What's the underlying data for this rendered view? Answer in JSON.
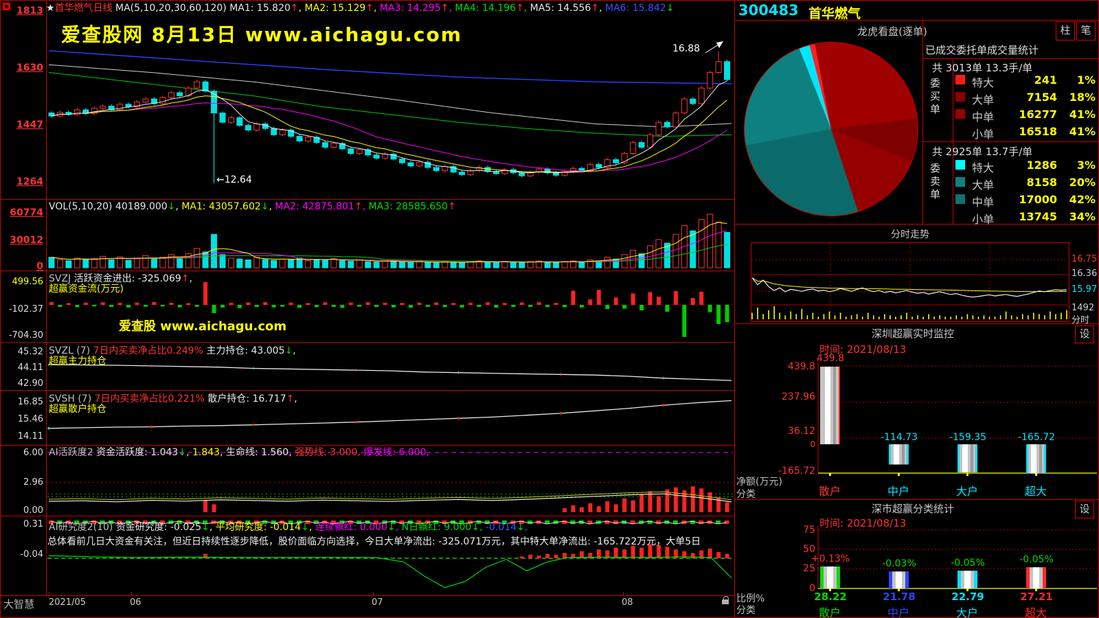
{
  "colors": {
    "accent_red": "#e00000",
    "up_red": "#ff3434",
    "down_cyan": "#00e0e0",
    "ma_yellow": "#ffff00",
    "ma_magenta": "#ff00ff",
    "ma_green": "#00cc00",
    "ma_blue": "#2840ff",
    "watermark_yellow": "#ffff00",
    "value_yellow": "#ffff00"
  },
  "left": {
    "kline_header": [
      {
        "t": "★",
        "c": "w"
      },
      {
        "t": "首华燃气",
        "c": "r"
      },
      {
        "t": "日线",
        "c": "r",
        "tail": " "
      },
      {
        "t": "MA(5,10,20,30,60,120) ",
        "c": "w"
      },
      {
        "t": "MA1: 15.820",
        "c": "w",
        "a": "up",
        "tail": ", "
      },
      {
        "t": "MA2: 15.129",
        "c": "y",
        "a": "up",
        "tail": ", "
      },
      {
        "t": "MA3: 14.295",
        "c": "m",
        "a": "up",
        "tail": ", "
      },
      {
        "t": "MA4: 14.196",
        "c": "g",
        "a": "up",
        "tail": ", "
      },
      {
        "t": "MA5: 14.556",
        "c": "w",
        "a": "up",
        "tail": ", "
      },
      {
        "t": "MA6: 15.842",
        "c": "b",
        "a": "down"
      }
    ],
    "ann_high": "16.88",
    "ann_low": "←12.64",
    "watermark_main": "爱查股网  8月13日  www.aichagu.com",
    "watermark_sub": "爱查股 www.aichagu.com",
    "vol_header": [
      {
        "t": "VOL(5,10,20) ",
        "c": "w"
      },
      {
        "t": "40189.000",
        "c": "w",
        "a": "down",
        "tail": ", "
      },
      {
        "t": "MA1: 43057.602",
        "c": "y",
        "a": "down",
        "tail": ", "
      },
      {
        "t": "MA2: 42875.801",
        "c": "m",
        "a": "up",
        "tail": ", "
      },
      {
        "t": "MA3: 28585.650",
        "c": "g",
        "a": "up"
      }
    ],
    "svzj_header": [
      {
        "t": "SVZJ  ",
        "c": "gr"
      },
      {
        "t": "活跃资金进出: -325.069",
        "c": "w",
        "a": "up",
        "tail": ", "
      }
    ],
    "svzj_sub": "超赢资金流(万元)",
    "svzl_header": [
      {
        "t": "SVZL (7) ",
        "c": "gr"
      },
      {
        "t": "7日内买卖净占比0.249% ",
        "c": "r"
      },
      {
        "t": "主力持仓: 43.005",
        "c": "w",
        "a": "down",
        "tail": ", "
      }
    ],
    "svzl_sub": "超赢主力持仓",
    "svsh_header": [
      {
        "t": "SVSH (7) ",
        "c": "gr"
      },
      {
        "t": "7日内买卖净占比0.221% ",
        "c": "r"
      },
      {
        "t": "散户持仓: 16.717",
        "c": "w",
        "a": "up",
        "tail": ", "
      }
    ],
    "svsh_sub": "超赢散户持仓",
    "ai1_header": [
      {
        "t": "AI活跃度2 ",
        "c": "gr"
      },
      {
        "t": "资金活跃度: 1.043",
        "c": "w",
        "a": "down",
        "tail": ", "
      },
      {
        "t": "1.843",
        "c": "y",
        "tail": ", "
      },
      {
        "t": "生命线: 1.560",
        "c": "w",
        "tail": ", "
      },
      {
        "t": "强势线: 3.000",
        "c": "r",
        "tail": ", "
      },
      {
        "t": "爆发线: 6.000",
        "c": "m",
        "tail": ", "
      }
    ],
    "ai2_header": [
      {
        "t": "AI研究度2(10) ",
        "c": "gr"
      },
      {
        "t": "资金研究度: -0.025",
        "c": "w",
        "a": "down",
        "tail": ", "
      },
      {
        "t": "平均研究度: -0.014",
        "c": "y",
        "a": "down",
        "tail": ", "
      },
      {
        "t": "连续飘红: 0.000",
        "c": "m",
        "a": "down",
        "tail": ", "
      },
      {
        "t": "N日飘红: 9.000",
        "c": "g",
        "a": "down",
        "tail": ", "
      },
      {
        "t": "-0.014",
        "c": "b",
        "a": "down",
        "tail": ","
      }
    ],
    "analysis_text": "总体看前几日大资金有关注，但近日持续性逐步降低，股价面临方向选择，今日大单净流出: -325.071万元，其中特大单净流出: -165.722万元，大单5日",
    "axes": {
      "price": [
        "1813",
        "1630",
        "1447",
        "1264"
      ],
      "vol": [
        "60774",
        "30012",
        "0"
      ],
      "svzj": [
        "499.56",
        "-102.37",
        "-704.30"
      ],
      "svzl": [
        "45.32",
        "44.11",
        "42.90"
      ],
      "svsh": [
        "16.85",
        "15.46",
        "14.11"
      ],
      "ai1": [
        "6.00",
        "2.96",
        "0.00"
      ],
      "ai2": [
        "0.31",
        "-0.04"
      ]
    },
    "bottom": {
      "brand": "大智慧",
      "dates": [
        "2021/05",
        "06",
        "07",
        "08"
      ]
    }
  },
  "right": {
    "code": "300483",
    "name": "首华燃气",
    "pie_title": "龙虎看盘(逐单)",
    "btn_bar": "柱",
    "btn_tick": "笔",
    "stats": {
      "title": "已成交委托单成交量统计",
      "buy_summary": "共 3013单 13.3手/单",
      "sell_summary": "共 2925单 13.7手/单",
      "buy_label": "委买单",
      "sell_label": "委卖单",
      "buy_rows": [
        {
          "name": "特大",
          "value": "241",
          "pct": "1%",
          "swatch": "#ff1a1a"
        },
        {
          "name": "大单",
          "value": "7154",
          "pct": "18%",
          "swatch": "#8b0000"
        },
        {
          "name": "中单",
          "value": "16277",
          "pct": "41%",
          "swatch": "#9b0000"
        },
        {
          "name": "小单",
          "value": "16518",
          "pct": "41%",
          "swatch": ""
        }
      ],
      "sell_rows": [
        {
          "name": "特大",
          "value": "1286",
          "pct": "3%",
          "swatch": "#00ffff"
        },
        {
          "name": "大单",
          "value": "8158",
          "pct": "20%",
          "swatch": "#0d8484"
        },
        {
          "name": "中单",
          "value": "17000",
          "pct": "42%",
          "swatch": "#0f7272"
        },
        {
          "name": "小单",
          "value": "13745",
          "pct": "34%",
          "swatch": ""
        }
      ]
    },
    "intraday": {
      "title": "分时走势",
      "price_high": "16.75",
      "price_mid": "16.36",
      "price_cur": "15.97",
      "vol_label": "1492",
      "axis_label": "分时"
    },
    "monitor_sz": {
      "title": "深圳超赢实时监控",
      "settings": "设",
      "time": "时间: 2021/08/13",
      "yticks": [
        "439.8",
        "237.96",
        "36.12"
      ],
      "ymin_label": "-165.72",
      "zero_label": "0",
      "unit_caption": "净额(万元)",
      "class_caption": "分类",
      "cats": [
        {
          "name": "散户",
          "value": "439.8",
          "bar": 439.8
        },
        {
          "name": "中户",
          "value": "-114.73",
          "bar": -114.73
        },
        {
          "name": "大户",
          "value": "-159.35",
          "bar": -159.35
        },
        {
          "name": "超大",
          "value": "-165.72",
          "bar": -165.72
        }
      ]
    },
    "monitor_class": {
      "title": "深市超赢分类统计",
      "settings": "设",
      "time": "时间: 2021/08/13",
      "yticks": [
        "75",
        "50",
        "25",
        "0"
      ],
      "ratio_caption": "比例%",
      "class_caption": "分类",
      "cats": [
        {
          "name": "散户",
          "pct": "+0.13%",
          "value": "28.22",
          "bar": 28.22,
          "color": "#00dd00",
          "pct_color": "#ff3434"
        },
        {
          "name": "中户",
          "pct": "-0.03%",
          "value": "21.78",
          "bar": 21.78,
          "color": "#2b46ff",
          "pct_color": "#00dd00"
        },
        {
          "name": "大户",
          "pct": "-0.05%",
          "value": "22.79",
          "bar": 22.79,
          "color": "#00e0ff",
          "pct_color": "#00dd00"
        },
        {
          "name": "超大",
          "pct": "-0.05%",
          "value": "27.21",
          "bar": 27.21,
          "color": "#ff2a2a",
          "pct_color": "#00dd00"
        }
      ]
    }
  },
  "chart_data": {
    "kline": {
      "type": "candlestick",
      "open0": 14.9,
      "ylim": [
        12.64,
        18.13
      ],
      "closes": [
        14.8,
        14.92,
        14.85,
        15.0,
        14.88,
        15.05,
        15.12,
        15.0,
        15.18,
        15.1,
        15.25,
        15.35,
        15.2,
        15.4,
        15.55,
        15.45,
        15.7,
        15.9,
        15.6,
        14.9,
        14.6,
        14.75,
        14.5,
        14.35,
        14.55,
        14.4,
        14.2,
        14.35,
        14.15,
        14.0,
        14.12,
        13.95,
        13.8,
        13.92,
        13.75,
        13.6,
        13.72,
        13.55,
        13.45,
        13.58,
        13.42,
        13.3,
        13.2,
        13.32,
        13.15,
        13.05,
        13.18,
        13.0,
        12.92,
        13.05,
        13.15,
        13.02,
        12.95,
        13.08,
        12.98,
        12.88,
        13.0,
        13.1,
        12.98,
        12.9,
        13.02,
        13.12,
        13.05,
        13.25,
        13.15,
        13.4,
        13.3,
        13.6,
        13.95,
        13.8,
        14.2,
        14.6,
        14.45,
        14.9,
        15.35,
        15.2,
        15.7,
        16.2,
        16.55,
        15.97
      ],
      "wick_low": {
        "index": 19,
        "value": 12.64
      },
      "wick_high": {
        "index": 78,
        "value": 16.88
      },
      "ma30": [
        [
          0,
          16.2
        ],
        [
          0.1,
          15.95
        ],
        [
          0.2,
          15.7
        ],
        [
          0.3,
          15.45
        ],
        [
          0.4,
          15.1
        ],
        [
          0.5,
          14.85
        ],
        [
          0.6,
          14.6
        ],
        [
          0.7,
          14.4
        ],
        [
          0.8,
          14.25
        ],
        [
          0.9,
          14.15
        ],
        [
          1,
          14.2
        ]
      ],
      "ma60": [
        [
          0,
          16.45
        ],
        [
          0.15,
          16.2
        ],
        [
          0.3,
          15.9
        ],
        [
          0.5,
          15.35
        ],
        [
          0.65,
          14.9
        ],
        [
          0.8,
          14.55
        ],
        [
          0.9,
          14.45
        ],
        [
          1,
          14.56
        ]
      ],
      "ma120": [
        [
          0,
          16.9
        ],
        [
          0.2,
          16.6
        ],
        [
          0.4,
          16.3
        ],
        [
          0.6,
          16.05
        ],
        [
          0.8,
          15.9
        ],
        [
          1,
          15.84
        ]
      ]
    },
    "volume": {
      "type": "bar",
      "ymax": 60774,
      "values": [
        12000,
        9000,
        8000,
        11000,
        9500,
        10500,
        13000,
        9000,
        12500,
        8500,
        11000,
        14000,
        10000,
        12000,
        15000,
        11000,
        16000,
        22000,
        18000,
        38000,
        15000,
        11000,
        10000,
        9000,
        12000,
        9500,
        8500,
        10000,
        9000,
        11000,
        8000,
        9500,
        8500,
        10500,
        8000,
        7500,
        9000,
        7000,
        6500,
        8000,
        7000,
        6500,
        6000,
        7500,
        6000,
        5500,
        7000,
        5800,
        6200,
        7500,
        8000,
        6500,
        6000,
        7200,
        6300,
        5800,
        7000,
        7800,
        6400,
        6000,
        7200,
        7800,
        6900,
        9000,
        8000,
        12000,
        10000,
        15000,
        20000,
        16000,
        25000,
        32000,
        28000,
        38000,
        48000,
        42000,
        55000,
        60774,
        52000,
        40189
      ]
    },
    "svzj": {
      "type": "bar",
      "ylim": [
        -704.3,
        499.56
      ],
      "values": [
        60,
        -45,
        38,
        -52,
        47,
        -33,
        55,
        -48,
        42,
        -58,
        50,
        -40,
        62,
        -35,
        45,
        -55,
        38,
        -42,
        499.56,
        -180,
        -60,
        45,
        -70,
        52,
        -48,
        60,
        -55,
        -40,
        48,
        -62,
        40,
        -50,
        55,
        -45,
        -65,
        50,
        -42,
        58,
        -48,
        45,
        -55,
        42,
        -60,
        48,
        -45,
        52,
        -50,
        40,
        -58,
        46,
        -44,
        55,
        -62,
        40,
        -48,
        52,
        -46,
        58,
        -50,
        44,
        -52,
        310,
        -58,
        120,
        330,
        -90,
        160,
        -80,
        250,
        -120,
        280,
        180,
        -150,
        300,
        -704.3,
        150,
        290,
        -160,
        -420,
        -380
      ]
    },
    "svzl": {
      "type": "line",
      "ylim": [
        42.9,
        45.32
      ],
      "values": [
        44.3,
        44.28,
        44.25,
        44.2,
        44.15,
        44.1,
        44.0,
        43.95,
        43.9,
        43.85,
        43.8,
        43.7,
        43.65,
        43.6,
        43.55,
        43.5,
        43.45,
        43.35,
        43.2,
        43.1,
        43.005
      ]
    },
    "svsh": {
      "type": "line",
      "ylim": [
        14.11,
        16.85
      ],
      "values": [
        14.5,
        14.55,
        14.6,
        14.62,
        14.68,
        14.72,
        14.78,
        14.85,
        14.92,
        15.0,
        15.1,
        15.2,
        15.3,
        15.4,
        15.55,
        15.7,
        15.9,
        16.1,
        16.35,
        16.55,
        16.717
      ]
    },
    "ai_activity": {
      "type": "line+bar",
      "ylim": [
        0,
        6
      ],
      "levels": {
        "life": 1.56,
        "avg": 1.843,
        "strong": 3.0,
        "burst": 6.0
      },
      "line": [
        1.1,
        1.15,
        1.05,
        1.2,
        1.12,
        1.25,
        1.18,
        1.1,
        1.22,
        1.15,
        1.08,
        1.2,
        1.28,
        1.18,
        1.3,
        1.45,
        1.6,
        1.75,
        1.85,
        1.5,
        1.043
      ],
      "bars": [
        0,
        0,
        0,
        0,
        0,
        0,
        0,
        0,
        0,
        0,
        0,
        0,
        0,
        0,
        0,
        0,
        0,
        0,
        1.2,
        0.8,
        0,
        0,
        0,
        0,
        0,
        0,
        0,
        0,
        0,
        0,
        0,
        0,
        0,
        0,
        0,
        0,
        0,
        0,
        0,
        0,
        0,
        0,
        0,
        0,
        0,
        0,
        0,
        0,
        0,
        0,
        0,
        0,
        0,
        0,
        0,
        0,
        0,
        0,
        0,
        0,
        0.4,
        0.7,
        0.5,
        0.9,
        0.6,
        1.1,
        0.8,
        1.4,
        1.2,
        1.8,
        2.1,
        1.6,
        2.3,
        2.5,
        2.2,
        2.6,
        2.4,
        2.0,
        1.5,
        1.0
      ]
    },
    "ai_research": {
      "type": "line+bar",
      "ylim": [
        -0.49,
        0.35
      ],
      "baseline": -0.078,
      "bars": [
        0,
        0,
        0,
        0,
        0,
        0,
        0,
        0,
        0,
        0,
        0,
        0,
        0,
        0,
        0,
        0,
        0,
        0,
        0.05,
        0,
        0,
        0,
        0,
        0,
        0,
        0,
        0,
        0,
        0,
        0,
        0,
        0,
        0,
        0,
        0,
        0,
        0,
        0,
        0,
        0,
        0,
        0,
        0,
        0,
        0,
        0,
        0,
        0,
        0,
        0,
        0,
        0,
        0,
        0,
        0,
        0.02,
        0.04,
        0.03,
        0.05,
        0.04,
        0.06,
        0.05,
        0.08,
        0.06,
        0.1,
        0.09,
        0.12,
        0.1,
        0.14,
        0.12,
        0.16,
        0.15,
        0.13,
        0.1,
        0.08,
        0.06,
        0.09,
        0.11,
        0.07,
        0.05
      ],
      "curve": [
        [
          0,
          -0.05
        ],
        [
          0.06,
          -0.06
        ],
        [
          0.12,
          -0.07
        ],
        [
          0.2,
          -0.065
        ],
        [
          0.3,
          -0.07
        ],
        [
          0.4,
          -0.068
        ],
        [
          0.48,
          -0.07
        ],
        [
          0.52,
          -0.12
        ],
        [
          0.55,
          -0.28
        ],
        [
          0.58,
          -0.41
        ],
        [
          0.61,
          -0.34
        ],
        [
          0.64,
          -0.18
        ],
        [
          0.67,
          -0.09
        ],
        [
          0.7,
          -0.22
        ],
        [
          0.73,
          -0.12
        ],
        [
          0.76,
          -0.07
        ],
        [
          0.82,
          -0.065
        ],
        [
          0.88,
          -0.07
        ],
        [
          0.93,
          -0.06
        ],
        [
          0.97,
          -0.07
        ],
        [
          1,
          -0.3
        ]
      ]
    },
    "intraday": {
      "prices": [
        16.28,
        16.1,
        16.22,
        16.05,
        15.95,
        16.02,
        15.92,
        15.98,
        15.96,
        15.93,
        15.97,
        15.99,
        15.94,
        15.96,
        15.92,
        15.95,
        16.0,
        15.97,
        15.93,
        15.98,
        16.02,
        15.96,
        15.92,
        15.95,
        15.9,
        15.93,
        15.89,
        15.92,
        15.95,
        15.91,
        15.88,
        15.9,
        15.86,
        15.89,
        15.92,
        15.88,
        15.85,
        15.87,
        15.83,
        15.8,
        15.78,
        15.8,
        15.82,
        15.84,
        15.81,
        15.83,
        15.85,
        15.82,
        15.8,
        15.83,
        15.86,
        15.9,
        15.94,
        15.92,
        15.95,
        15.97,
        15.96,
        15.97
      ],
      "vols": [
        0.5,
        0.9,
        0.4,
        0.7,
        1.0,
        0.5,
        0.3,
        0.6,
        0.4,
        0.8,
        0.3,
        0.5,
        0.2,
        0.4,
        0.6,
        0.3,
        0.5,
        0.2,
        0.3,
        0.4,
        0.2,
        0.5,
        0.3,
        0.2,
        0.4,
        0.3,
        0.2,
        0.3,
        0.5,
        0.2,
        0.3,
        0.2,
        0.4,
        0.2,
        0.3,
        0.2,
        0.2,
        0.3,
        0.2,
        0.4,
        0.3,
        0.2,
        0.3,
        0.2,
        0.2,
        0.3,
        0.6,
        0.3,
        0.2,
        0.4,
        0.3,
        0.5,
        0.4,
        0.3,
        0.6,
        0.4,
        0.5,
        0.7
      ]
    },
    "pie_segments": [
      [
        "#a00000",
        0,
        23
      ],
      [
        "#7e0000",
        23,
        31
      ],
      [
        "#960000",
        31,
        45
      ],
      [
        "#0b6b6b",
        45,
        72
      ],
      [
        "#0e8080",
        72,
        94
      ],
      [
        "#00e5ff",
        94,
        96
      ],
      [
        "#ff2020",
        96,
        97
      ],
      [
        "#a00000",
        97,
        100
      ]
    ],
    "monitor_sz_values": [
      439.8,
      -114.73,
      -159.35,
      -165.72
    ],
    "monitor_class_values": [
      28.22,
      21.78,
      22.79,
      27.21
    ]
  }
}
